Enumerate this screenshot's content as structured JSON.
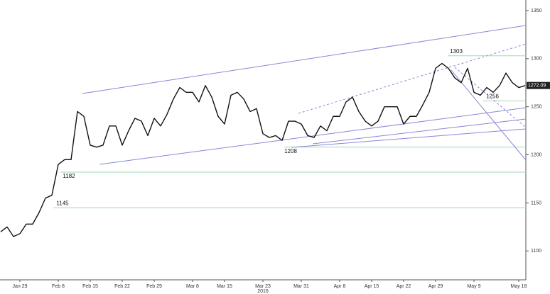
{
  "chart_data": {
    "type": "line",
    "categories": [
      null,
      null,
      null,
      "Jan 29",
      null,
      null,
      null,
      null,
      null,
      "Feb 8",
      null,
      null,
      null,
      null,
      "Feb 15",
      null,
      null,
      null,
      null,
      "Feb 22",
      null,
      null,
      null,
      null,
      "Feb 29",
      null,
      null,
      null,
      null,
      null,
      "Mar 8",
      null,
      null,
      null,
      null,
      "Mar 15",
      null,
      null,
      null,
      null,
      null,
      "Mar 23",
      null,
      null,
      null,
      null,
      null,
      "Mar 31",
      null,
      null,
      null,
      null,
      null,
      "Apr 8",
      null,
      null,
      null,
      null,
      "Apr 15",
      null,
      null,
      null,
      null,
      "Apr 22",
      null,
      null,
      null,
      null,
      "Apr 29",
      null,
      null,
      null,
      null,
      null,
      "May 9",
      null,
      null,
      null,
      null,
      null,
      null,
      "May 18",
      null
    ],
    "year_label": "2016",
    "series": [
      {
        "color": "#111111",
        "values": [
          1120,
          1125,
          1115,
          1118,
          1128,
          1128,
          1140,
          1155,
          1158,
          1190,
          1195,
          1195,
          1245,
          1240,
          1210,
          1208,
          1210,
          1230,
          1230,
          1210,
          1225,
          1238,
          1235,
          1220,
          1238,
          1230,
          1242,
          1258,
          1270,
          1265,
          1265,
          1255,
          1272,
          1260,
          1240,
          1232,
          1262,
          1265,
          1258,
          1245,
          1248,
          1222,
          1218,
          1220,
          1215,
          1235,
          1235,
          1232,
          1220,
          1218,
          1230,
          1225,
          1240,
          1240,
          1255,
          1260,
          1245,
          1235,
          1230,
          1235,
          1250,
          1250,
          1250,
          1232,
          1240,
          1240,
          1252,
          1265,
          1290,
          1295,
          1290,
          1280,
          1275,
          1290,
          1265,
          1262,
          1270,
          1265,
          1272,
          1285,
          1275,
          1270,
          1272
        ]
      }
    ],
    "ylim": [
      1070,
      1361
    ],
    "yticks": [
      1100,
      1150,
      1200,
      1250,
      1300,
      1350
    ],
    "levels": [
      1303,
      1256,
      1208,
      1182,
      1145
    ],
    "last_price": 1272.09
  }
}
